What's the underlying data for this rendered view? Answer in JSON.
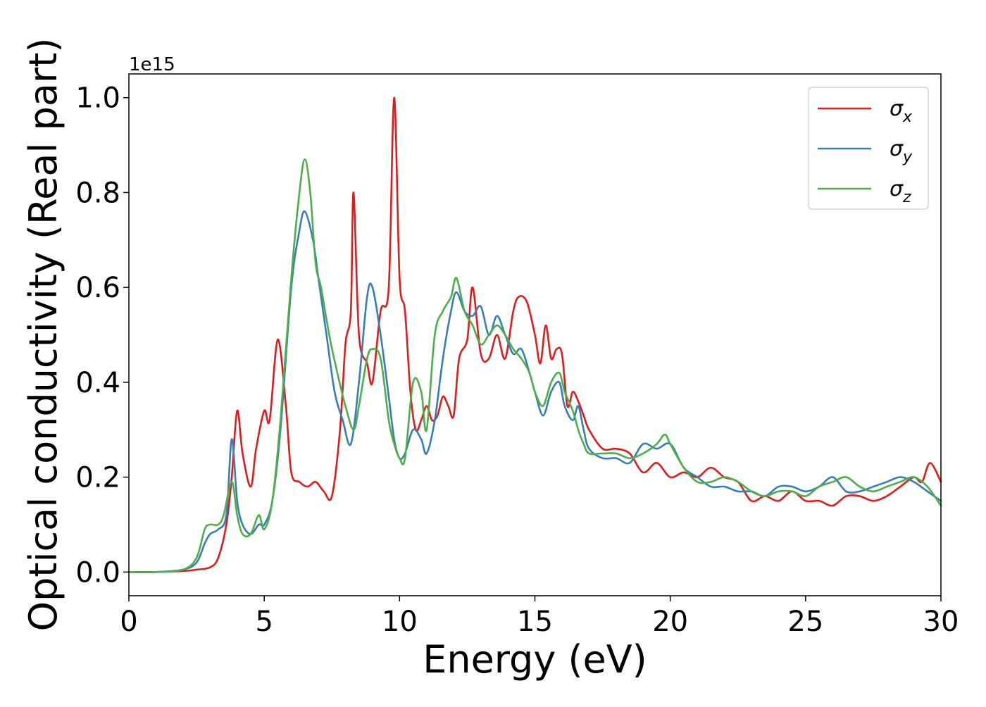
{
  "chart_data": {
    "type": "line",
    "title": "",
    "xlabel": "Energy (eV)",
    "ylabel": "Optical conductivity (Real part)",
    "y_offset_label": "1e15",
    "xlim": [
      0,
      30
    ],
    "ylim": [
      -0.05,
      1.05
    ],
    "x_ticks": [
      0,
      5,
      10,
      15,
      20,
      25,
      30
    ],
    "x_tick_labels": [
      "0",
      "5",
      "10",
      "15",
      "20",
      "25",
      "30"
    ],
    "y_ticks": [
      0.0,
      0.2,
      0.4,
      0.6,
      0.8,
      1.0
    ],
    "y_tick_labels": [
      "0.0",
      "0.2",
      "0.4",
      "0.6",
      "0.8",
      "1.0"
    ],
    "grid": false,
    "legend_position": "top-right",
    "series": [
      {
        "name": "σx",
        "legend_base": "σ",
        "legend_sub": "x",
        "color": "#e31a1c",
        "x": [
          0,
          1,
          2,
          2.5,
          3,
          3.3,
          3.6,
          3.8,
          4.0,
          4.2,
          4.5,
          4.7,
          5.0,
          5.2,
          5.5,
          5.8,
          6.0,
          6.3,
          6.6,
          6.9,
          7.2,
          7.5,
          7.8,
          8.0,
          8.2,
          8.3,
          8.5,
          8.8,
          9.0,
          9.3,
          9.6,
          9.8,
          10.0,
          10.2,
          10.4,
          10.6,
          10.8,
          11.0,
          11.2,
          11.4,
          11.6,
          11.8,
          12.0,
          12.2,
          12.5,
          12.7,
          13.0,
          13.3,
          13.6,
          13.9,
          14.2,
          14.4,
          14.7,
          15.0,
          15.2,
          15.4,
          15.6,
          15.8,
          16.0,
          16.2,
          16.4,
          16.6,
          16.8,
          17.0,
          17.5,
          18.0,
          18.5,
          19.0,
          19.5,
          20.0,
          20.5,
          21.0,
          21.5,
          22.0,
          22.5,
          23.0,
          23.5,
          24.0,
          24.5,
          25.0,
          25.5,
          26.0,
          26.5,
          27.0,
          27.5,
          28.0,
          28.5,
          29.0,
          29.3,
          29.6,
          30.0
        ],
        "y": [
          0.0,
          0.0,
          0.002,
          0.005,
          0.01,
          0.03,
          0.1,
          0.2,
          0.34,
          0.25,
          0.18,
          0.26,
          0.34,
          0.32,
          0.49,
          0.35,
          0.21,
          0.19,
          0.18,
          0.19,
          0.17,
          0.16,
          0.3,
          0.48,
          0.55,
          0.8,
          0.5,
          0.44,
          0.4,
          0.55,
          0.6,
          1.0,
          0.62,
          0.55,
          0.38,
          0.3,
          0.32,
          0.35,
          0.32,
          0.33,
          0.37,
          0.35,
          0.33,
          0.45,
          0.49,
          0.6,
          0.46,
          0.45,
          0.5,
          0.45,
          0.55,
          0.58,
          0.57,
          0.5,
          0.44,
          0.52,
          0.45,
          0.47,
          0.46,
          0.35,
          0.38,
          0.36,
          0.33,
          0.3,
          0.26,
          0.26,
          0.25,
          0.21,
          0.23,
          0.2,
          0.21,
          0.2,
          0.22,
          0.2,
          0.19,
          0.15,
          0.16,
          0.15,
          0.17,
          0.15,
          0.15,
          0.14,
          0.16,
          0.16,
          0.15,
          0.16,
          0.18,
          0.2,
          0.19,
          0.23,
          0.19
        ]
      },
      {
        "name": "σy",
        "legend_base": "σ",
        "legend_sub": "y",
        "color": "#377eb8",
        "x": [
          0,
          1,
          2,
          2.5,
          2.8,
          3.0,
          3.3,
          3.6,
          3.8,
          4.0,
          4.2,
          4.5,
          4.8,
          5.0,
          5.3,
          5.6,
          6.0,
          6.3,
          6.5,
          6.8,
          7.0,
          7.3,
          7.6,
          7.9,
          8.2,
          8.5,
          8.8,
          9.0,
          9.3,
          9.6,
          9.8,
          10.0,
          10.2,
          10.5,
          10.8,
          11.0,
          11.3,
          11.6,
          11.9,
          12.1,
          12.4,
          12.7,
          13.0,
          13.3,
          13.6,
          13.9,
          14.2,
          14.5,
          14.8,
          15.0,
          15.3,
          15.6,
          15.9,
          16.1,
          16.4,
          16.6,
          16.8,
          17.0,
          17.5,
          18.0,
          18.5,
          19.0,
          19.5,
          20.0,
          20.5,
          21.0,
          21.5,
          22.0,
          22.5,
          23.0,
          23.5,
          24.0,
          24.5,
          25.0,
          25.5,
          26.0,
          26.5,
          27.0,
          27.5,
          28.0,
          28.5,
          29.0,
          29.5,
          30.0
        ],
        "y": [
          0.0,
          0.0,
          0.005,
          0.02,
          0.06,
          0.08,
          0.09,
          0.12,
          0.28,
          0.15,
          0.1,
          0.08,
          0.1,
          0.1,
          0.15,
          0.3,
          0.6,
          0.72,
          0.76,
          0.7,
          0.62,
          0.5,
          0.38,
          0.32,
          0.27,
          0.4,
          0.58,
          0.6,
          0.5,
          0.37,
          0.28,
          0.24,
          0.25,
          0.3,
          0.28,
          0.25,
          0.32,
          0.45,
          0.55,
          0.59,
          0.55,
          0.54,
          0.56,
          0.5,
          0.54,
          0.5,
          0.46,
          0.47,
          0.42,
          0.38,
          0.33,
          0.38,
          0.4,
          0.35,
          0.32,
          0.35,
          0.3,
          0.26,
          0.24,
          0.24,
          0.23,
          0.27,
          0.26,
          0.27,
          0.22,
          0.2,
          0.18,
          0.18,
          0.17,
          0.17,
          0.16,
          0.18,
          0.18,
          0.17,
          0.18,
          0.2,
          0.17,
          0.17,
          0.18,
          0.19,
          0.2,
          0.19,
          0.17,
          0.15
        ]
      },
      {
        "name": "σz",
        "legend_base": "σ",
        "legend_sub": "z",
        "color": "#4daf4a",
        "x": [
          0,
          1,
          2,
          2.5,
          2.8,
          3.0,
          3.3,
          3.5,
          3.8,
          4.0,
          4.2,
          4.5,
          4.8,
          5.0,
          5.3,
          5.6,
          6.0,
          6.3,
          6.5,
          6.7,
          6.9,
          7.1,
          7.4,
          7.7,
          8.0,
          8.3,
          8.5,
          8.8,
          9.0,
          9.3,
          9.6,
          9.8,
          10.0,
          10.2,
          10.5,
          10.8,
          11.0,
          11.3,
          11.6,
          11.9,
          12.1,
          12.4,
          12.7,
          13.0,
          13.3,
          13.6,
          13.9,
          14.2,
          14.5,
          14.8,
          15.0,
          15.3,
          15.6,
          15.9,
          16.1,
          16.4,
          16.6,
          16.8,
          17.0,
          17.5,
          18.0,
          18.5,
          19.0,
          19.5,
          19.8,
          20.0,
          20.5,
          21.0,
          21.5,
          22.0,
          22.5,
          23.0,
          23.5,
          24.0,
          24.5,
          25.0,
          25.5,
          26.0,
          26.5,
          27.0,
          27.5,
          28.0,
          28.5,
          29.0,
          29.5,
          30.0
        ],
        "y": [
          0.0,
          0.0,
          0.005,
          0.03,
          0.09,
          0.1,
          0.1,
          0.12,
          0.19,
          0.12,
          0.08,
          0.08,
          0.12,
          0.09,
          0.15,
          0.32,
          0.62,
          0.8,
          0.87,
          0.8,
          0.65,
          0.6,
          0.5,
          0.42,
          0.35,
          0.3,
          0.35,
          0.45,
          0.47,
          0.45,
          0.32,
          0.27,
          0.24,
          0.24,
          0.4,
          0.38,
          0.3,
          0.5,
          0.55,
          0.58,
          0.62,
          0.55,
          0.52,
          0.48,
          0.5,
          0.52,
          0.5,
          0.47,
          0.45,
          0.42,
          0.38,
          0.35,
          0.4,
          0.42,
          0.38,
          0.34,
          0.3,
          0.27,
          0.25,
          0.25,
          0.25,
          0.24,
          0.25,
          0.27,
          0.29,
          0.27,
          0.22,
          0.19,
          0.19,
          0.2,
          0.19,
          0.17,
          0.16,
          0.17,
          0.17,
          0.16,
          0.18,
          0.19,
          0.2,
          0.18,
          0.17,
          0.18,
          0.19,
          0.2,
          0.18,
          0.14
        ]
      }
    ]
  }
}
